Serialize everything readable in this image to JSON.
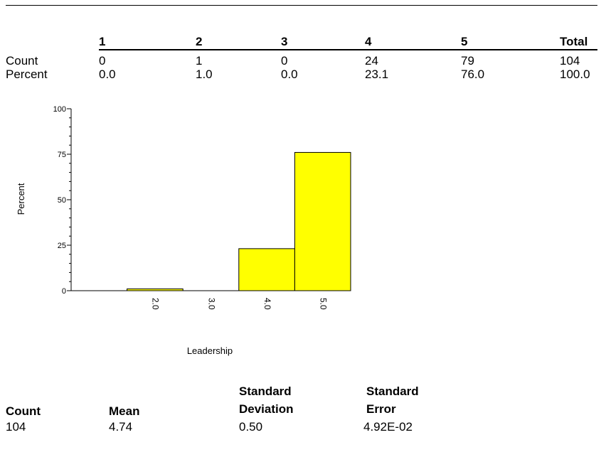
{
  "frequency_table": {
    "columns": [
      "1",
      "2",
      "3",
      "4",
      "5",
      "Total"
    ],
    "rows": [
      {
        "label": "Count",
        "values": [
          "0",
          "1",
          "0",
          "24",
          "79",
          "104"
        ]
      },
      {
        "label": "Percent",
        "values": [
          "0.0",
          "1.0",
          "0.0",
          "23.1",
          "76.0",
          "100.0"
        ]
      }
    ]
  },
  "chart_data": {
    "type": "bar",
    "categories": [
      "1.0",
      "2.0",
      "3.0",
      "4.0",
      "5.0"
    ],
    "x_tick_labels": [
      "2.0",
      "3.0",
      "4.0",
      "5.0"
    ],
    "values": [
      0.0,
      1.0,
      0.0,
      23.1,
      76.0
    ],
    "xlabel": "Leadership",
    "ylabel": "Percent",
    "ylim": [
      0,
      100
    ],
    "y_ticks": [
      0,
      25,
      50,
      75,
      100
    ],
    "y_tick_labels": [
      "0",
      "25",
      "50",
      "75",
      "100"
    ],
    "grid": false,
    "legend": "none",
    "bar_color": "#ffff00",
    "bar_outline": "#000000"
  },
  "summary": {
    "headers": [
      {
        "line1": "",
        "line2": "Count"
      },
      {
        "line1": "",
        "line2": "Mean"
      },
      {
        "line1": "Standard",
        "line2": "Deviation"
      },
      {
        "line1": "Standard",
        "line2": "Error"
      }
    ],
    "values": [
      "104",
      "4.74",
      "0.50",
      "4.92E-02"
    ]
  }
}
